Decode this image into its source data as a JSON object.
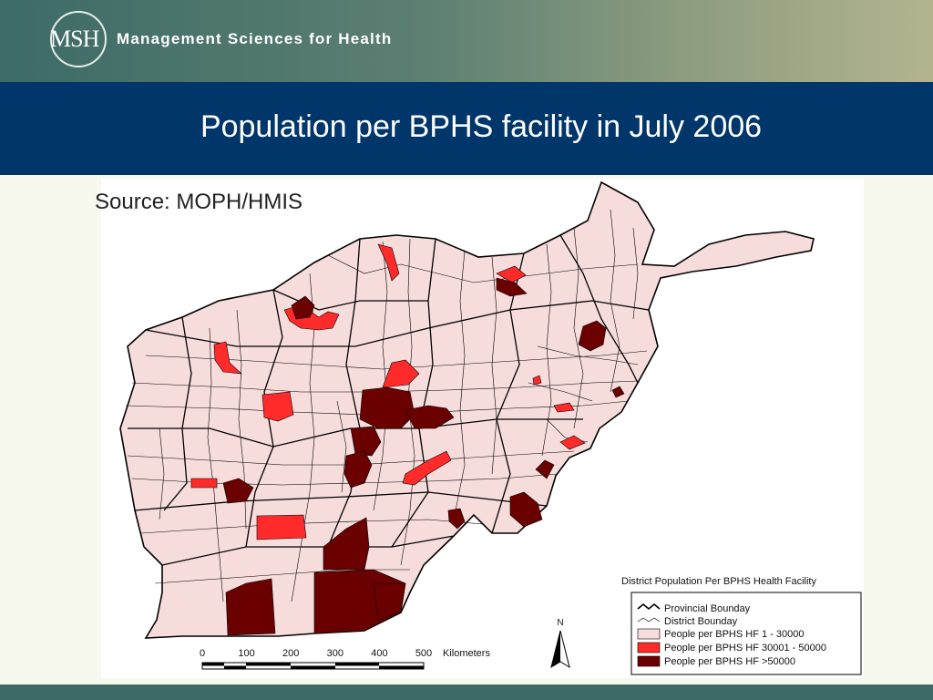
{
  "header": {
    "logo_short": "MSH",
    "logo_name": "Management Sciences for Health"
  },
  "slide": {
    "title": "Population per BPHS facility in July 2006",
    "source": "Source: MOPH/HMIS"
  },
  "map": {
    "legend_title": "District Population Per BPHS Health Facility",
    "boundary_items": [
      {
        "label": "Provincial Bounday"
      },
      {
        "label": "District Bounday"
      }
    ],
    "classes": [
      {
        "label": "People per BPHS HF 1 - 30000",
        "color": "#f7dcdc"
      },
      {
        "label": "People per BPHS HF 30001 - 50000",
        "color": "#ff2a2a"
      },
      {
        "label": "People per BPHS HF >50000",
        "color": "#6b0000"
      }
    ],
    "north_label": "N",
    "scale": {
      "ticks": [
        "0",
        "100",
        "200",
        "300",
        "400",
        "500"
      ],
      "unit": "Kilometers"
    }
  }
}
